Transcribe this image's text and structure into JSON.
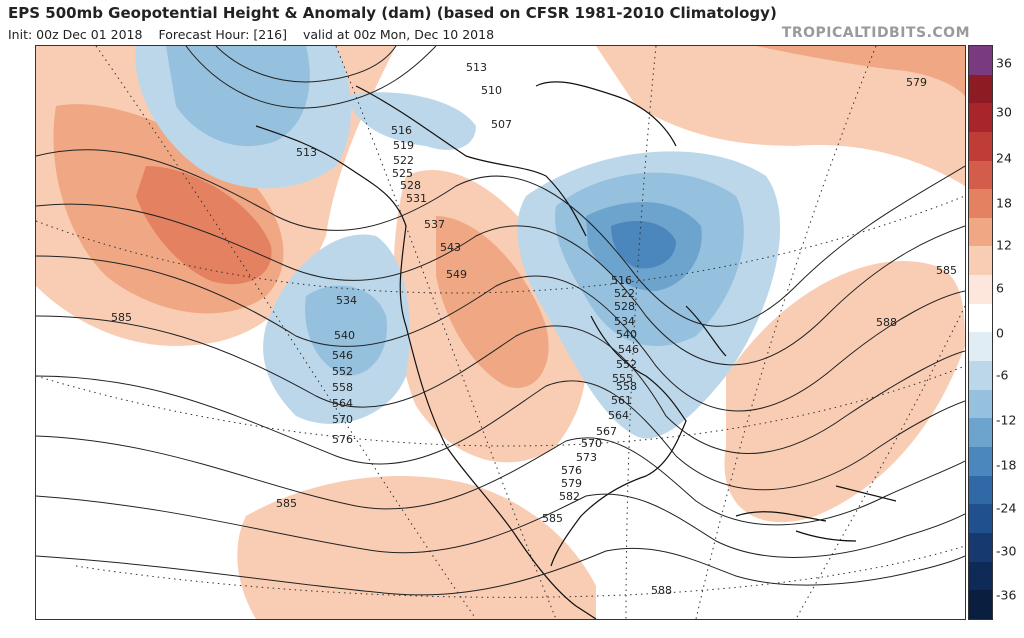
{
  "header": {
    "title": "EPS 500mb Geopotential Height & Anomaly (dam) (based on CFSR 1981-2010 Climatology)",
    "init": "Init: 00z Dec 01 2018",
    "forecast_hour": "Forecast Hour: [216]",
    "valid": "valid at 00z Mon, Dec 10 2018",
    "brand": "TROPICALTIDBITS.COM"
  },
  "colorbar": {
    "labels": [
      "36",
      "30",
      "24",
      "18",
      "12",
      "6",
      "0",
      "-6",
      "-12",
      "-18",
      "-24",
      "-30",
      "-36"
    ],
    "colors": [
      "#7a3a7f",
      "#8c1b24",
      "#a8262b",
      "#c03c36",
      "#d45c4a",
      "#e48161",
      "#f0a784",
      "#f9cdb4",
      "#fde7dc",
      "#ffffff",
      "#e1edf5",
      "#bcd7ea",
      "#95c0de",
      "#6da4cd",
      "#4b86bc",
      "#3169a6",
      "#20508d",
      "#163a70",
      "#0e2a56",
      "#0a1e40"
    ]
  },
  "map": {
    "contour_labels": [
      "513",
      "510",
      "507",
      "516",
      "519",
      "522",
      "525",
      "528",
      "531",
      "537",
      "543",
      "549",
      "534",
      "540",
      "546",
      "552",
      "558",
      "564",
      "570",
      "576",
      "585",
      "585",
      "585",
      "585",
      "579",
      "588",
      "516",
      "522",
      "528",
      "534",
      "540",
      "546",
      "552",
      "555",
      "558",
      "561",
      "564",
      "567",
      "570",
      "573",
      "576",
      "579",
      "582",
      "588",
      "513"
    ],
    "anomaly_colors": {
      "weak_positive": "#f9cdb4",
      "moderate_positive": "#f0a784",
      "strong_positive": "#e48161",
      "weak_negative": "#bcd7ea",
      "moderate_negative": "#95c0de",
      "strong_negative": "#6da4cd",
      "deep_negative": "#4b86bc"
    }
  }
}
